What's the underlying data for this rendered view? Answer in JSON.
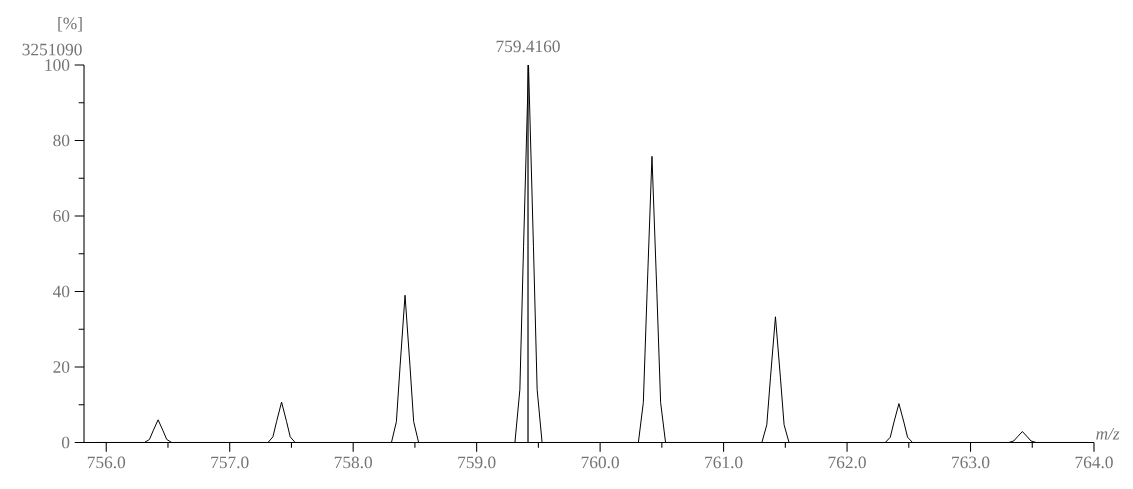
{
  "chart_data": {
    "type": "line",
    "xlabel": "m/z",
    "ylabel": "[%]",
    "annotations": [
      "3251090",
      {
        "text": "759.4160",
        "x": 759.416,
        "y": 100
      }
    ],
    "series": [
      {
        "color": "#000000",
        "x": [
          755.92,
          756.31,
          756.35,
          756.38,
          756.42,
          756.46,
          756.49,
          756.53,
          757.31,
          757.35,
          757.38,
          757.42,
          757.46,
          757.49,
          757.53,
          758.31,
          758.35,
          758.38,
          758.42,
          758.46,
          758.49,
          758.53,
          759.31,
          759.35,
          759.38,
          759.42,
          759.46,
          759.49,
          759.53,
          760.31,
          760.35,
          760.38,
          760.42,
          760.46,
          760.49,
          760.53,
          761.31,
          761.35,
          761.38,
          761.42,
          761.46,
          761.49,
          761.53,
          762.31,
          762.35,
          762.38,
          762.42,
          762.46,
          762.49,
          762.53,
          763.31,
          763.35,
          763.38,
          763.42,
          763.46,
          763.49,
          763.53,
          763.95
        ],
        "values": [
          0,
          0,
          0.8,
          3.1,
          6,
          3.1,
          0.8,
          0,
          0,
          1.5,
          5.6,
          10.7,
          5.6,
          1.5,
          0,
          0,
          5.5,
          20.3,
          39,
          20.3,
          5.5,
          0,
          0,
          14,
          52,
          100,
          52,
          14,
          0,
          0,
          10.6,
          39.4,
          75.8,
          39.4,
          10.6,
          0,
          0,
          4.7,
          17.3,
          33.3,
          17.3,
          4.7,
          0,
          0,
          1.4,
          5.4,
          10.3,
          5.4,
          1.4,
          0,
          0,
          0.4,
          1.5,
          2.9,
          1.5,
          0.4,
          0,
          0
        ]
      }
    ],
    "ref_lines": [
      {
        "axis": "x",
        "value": 759.416,
        "color": "#000000"
      }
    ],
    "xlim": [
      755.82,
      764.0
    ],
    "ylim": [
      0,
      100
    ],
    "xticks": [
      {
        "value": 756,
        "label": "756.0"
      },
      {
        "value": 756.5,
        "label": null
      },
      {
        "value": 757,
        "label": "757.0"
      },
      {
        "value": 757.5,
        "label": null
      },
      {
        "value": 758,
        "label": "758.0"
      },
      {
        "value": 758.5,
        "label": null
      },
      {
        "value": 759,
        "label": "759.0"
      },
      {
        "value": 759.5,
        "label": null
      },
      {
        "value": 760,
        "label": "760.0"
      },
      {
        "value": 760.5,
        "label": null
      },
      {
        "value": 761,
        "label": "761.0"
      },
      {
        "value": 761.5,
        "label": null
      },
      {
        "value": 762,
        "label": "762.0"
      },
      {
        "value": 762.5,
        "label": null
      },
      {
        "value": 763,
        "label": "763.0"
      },
      {
        "value": 763.5,
        "label": null
      },
      {
        "value": 764,
        "label": "764.0"
      }
    ],
    "yticks": [
      0,
      {
        "value": 10,
        "label": null
      },
      20,
      {
        "value": 30,
        "label": null
      },
      40,
      {
        "value": 50,
        "label": null
      },
      60,
      {
        "value": 70,
        "label": null
      },
      80,
      {
        "value": 90,
        "label": null
      },
      100
    ],
    "marker": "none",
    "line_style": "solid"
  }
}
